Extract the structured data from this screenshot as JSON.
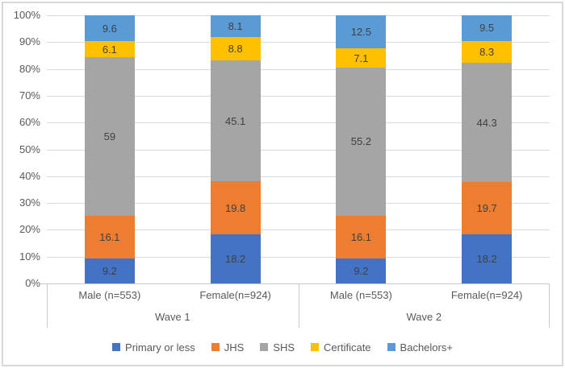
{
  "colors": {
    "gridline": "#d9d9d9",
    "axis_line": "#c8c8c8",
    "border": "#d9d9d9",
    "data_label_text": "#404040",
    "axis_text": "#595959"
  },
  "chart_data": {
    "type": "bar",
    "subtype": "stacked-100-percent-column",
    "title": "",
    "xlabel": "",
    "ylabel": "",
    "grid": true,
    "legend_position": "bottom",
    "y_axis": {
      "min": 0,
      "max": 100,
      "step": 10,
      "ticks": [
        "0%",
        "10%",
        "20%",
        "30%",
        "40%",
        "50%",
        "60%",
        "70%",
        "80%",
        "90%",
        "100%"
      ]
    },
    "groups": [
      {
        "label": "Wave 1"
      },
      {
        "label": "Wave 2"
      }
    ],
    "categories": [
      "Male (n=553)",
      "Female(n=924)",
      "Male (n=553)",
      "Female(n=924)"
    ],
    "series": [
      {
        "name": "Primary or less",
        "color": "#4472C4",
        "values": [
          9.2,
          18.2,
          9.2,
          18.2
        ]
      },
      {
        "name": "JHS",
        "color": "#ED7D31",
        "values": [
          16.1,
          19.8,
          16.1,
          19.7
        ]
      },
      {
        "name": "SHS",
        "color": "#A5A5A5",
        "values": [
          59,
          45.1,
          55.2,
          44.3
        ]
      },
      {
        "name": "Certificate",
        "color": "#FFC000",
        "values": [
          6.1,
          8.8,
          7.1,
          8.3
        ]
      },
      {
        "name": "Bachelors+",
        "color": "#5B9BD5",
        "values": [
          9.6,
          8.1,
          12.5,
          9.5
        ]
      }
    ]
  }
}
